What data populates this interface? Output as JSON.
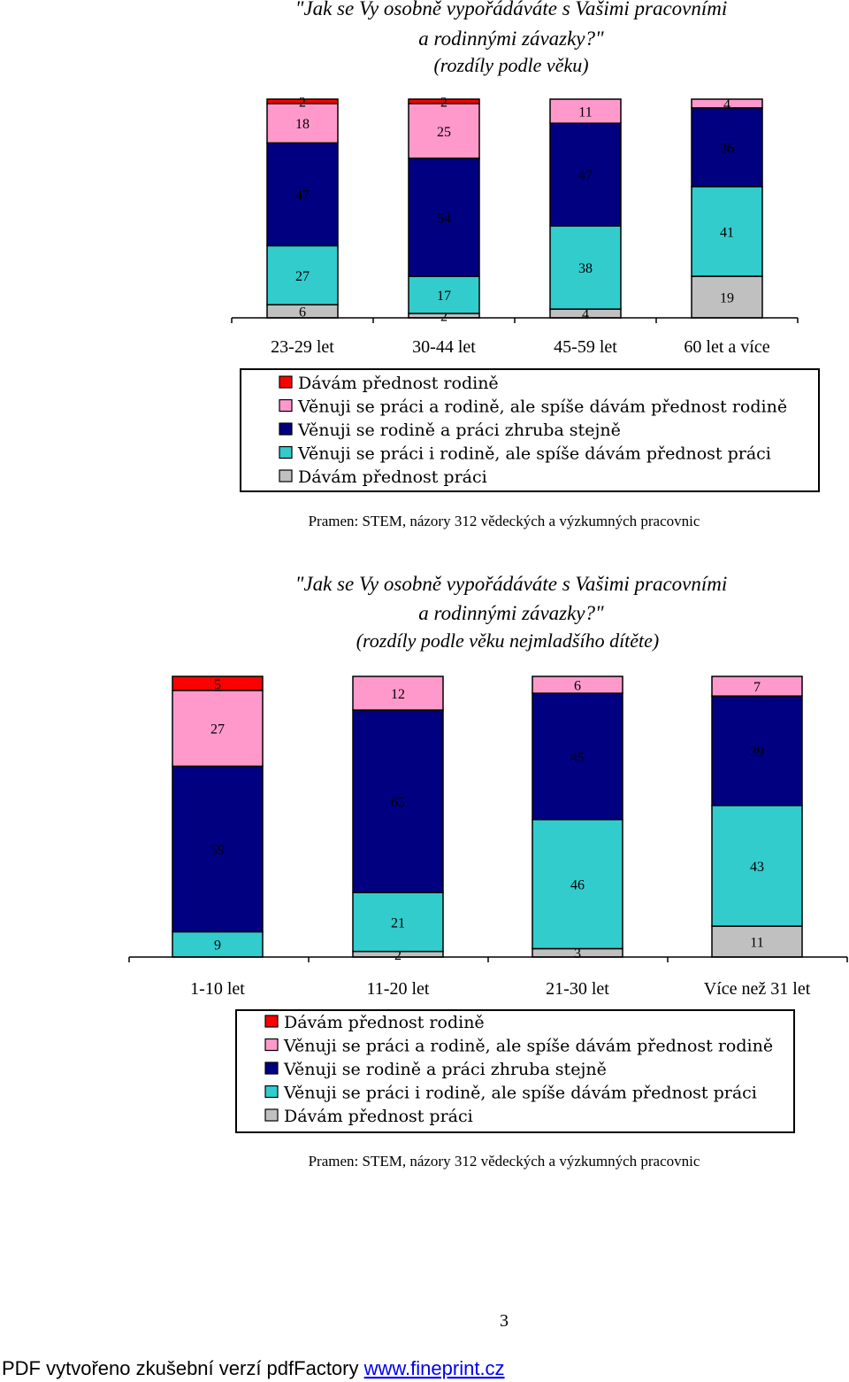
{
  "colors": {
    "rodine": "#ff0000",
    "spise_rodine": "#ff99cc",
    "stejne": "#000080",
    "spise_praci": "#33cccc",
    "praci": "#c0c0c0"
  },
  "legend_labels": [
    "Dávám přednost rodině",
    "Věnuji se práci a rodině, ale spíše dávám přednost rodině",
    "Věnuji se rodině a práci zhruba stejně",
    "Věnuji se práci i rodině, ale spíše dávám přednost práci",
    "Dávám přednost práci"
  ],
  "chart_data": [
    {
      "type": "bar",
      "stacked": true,
      "title_line1": "\"Jak se Vy osobně vypořádáváte s Vašimi pracovními",
      "title_line2": "a rodinnými závazky?\"",
      "subtitle": "(rozdíly podle věku)",
      "categories": [
        "23-29 let",
        "30-44 let",
        "45-59 let",
        "60 let a více"
      ],
      "series": [
        {
          "name": "Dávám přednost práci",
          "values": [
            6,
            2,
            4,
            19
          ]
        },
        {
          "name": "Věnuji se práci i rodině, ale spíše dávám přednost práci",
          "values": [
            27,
            17,
            38,
            41
          ]
        },
        {
          "name": "Věnuji se rodině a práci zhruba stejně",
          "values": [
            47,
            54,
            47,
            36
          ]
        },
        {
          "name": "Věnuji se práci a rodině, ale spíše dávám přednost rodině",
          "values": [
            18,
            25,
            11,
            4
          ]
        },
        {
          "name": "Dávám přednost rodině",
          "values": [
            2,
            2,
            0,
            0
          ]
        }
      ],
      "source": "Pramen: STEM, názory 312 vědeckých a výzkumných pracovnic"
    },
    {
      "type": "bar",
      "stacked": true,
      "title_line1": "\"Jak se Vy osobně vypořádáváte s Vašimi pracovními",
      "title_line2": "a rodinnými závazky?\"",
      "subtitle": "(rozdíly podle věku nejmladšího dítěte)",
      "categories": [
        "1-10 let",
        "11-20 let",
        "21-30 let",
        "Více než 31 let"
      ],
      "series": [
        {
          "name": "Dávám přednost práci",
          "values": [
            0,
            2,
            3,
            11
          ]
        },
        {
          "name": "Věnuji se práci i rodině, ale spíše dávám přednost práci",
          "values": [
            9,
            21,
            46,
            43
          ]
        },
        {
          "name": "Věnuji se rodině a práci zhruba stejně",
          "values": [
            59,
            65,
            45,
            39
          ]
        },
        {
          "name": "Věnuji se práci a rodině, ale spíše dávám přednost rodině",
          "values": [
            27,
            12,
            6,
            7
          ]
        },
        {
          "name": "Dávám přednost rodině",
          "values": [
            5,
            0,
            0,
            0
          ]
        }
      ],
      "source": "Pramen: STEM, názory 312 vědeckých a výzkumných pracovnic"
    }
  ],
  "page_number": "3",
  "footer": {
    "text": "PDF vytvořeno zkušební verzí pdfFactory ",
    "link": "www.fineprint.cz"
  }
}
